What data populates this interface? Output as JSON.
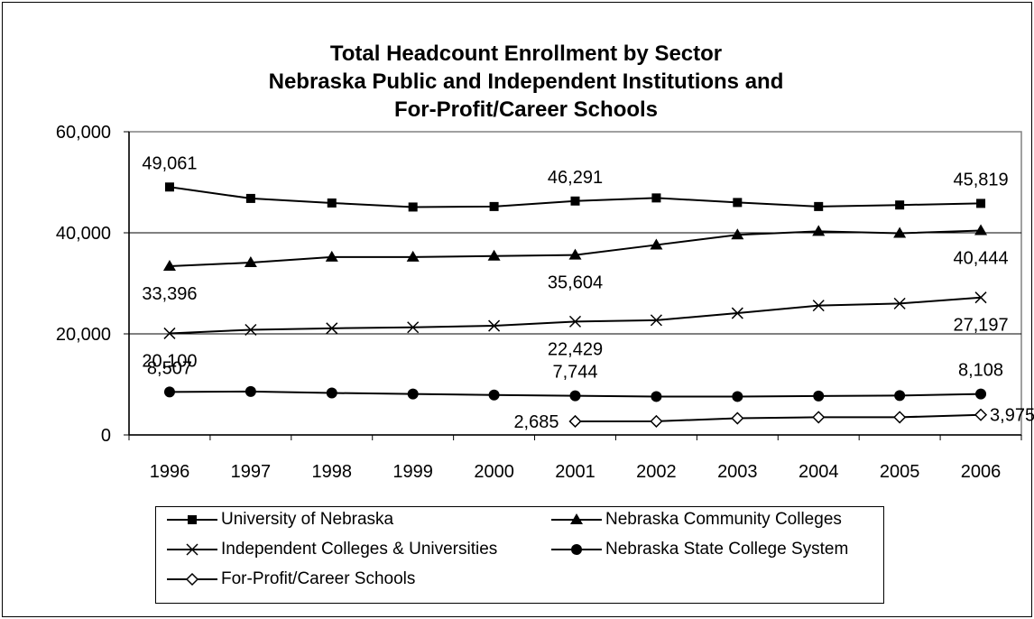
{
  "chart_data": {
    "type": "line",
    "title": [
      "Total Headcount Enrollment by Sector",
      "Nebraska Public and Independent Institutions and",
      "For-Profit/Career Schools"
    ],
    "xlabel": "",
    "ylabel": "",
    "x": [
      "1996",
      "1997",
      "1998",
      "1999",
      "2000",
      "2001",
      "2002",
      "2003",
      "2004",
      "2005",
      "2006"
    ],
    "ylim": [
      0,
      60000
    ],
    "yticks": [
      {
        "value": 0,
        "label": "0"
      },
      {
        "value": 20000,
        "label": "20,000"
      },
      {
        "value": 40000,
        "label": "40,000"
      },
      {
        "value": 60000,
        "label": "60,000"
      }
    ],
    "grid": "horizontal",
    "legend_position": "bottom",
    "series": [
      {
        "name": "University of Nebraska",
        "marker": "square",
        "values": [
          49061,
          46800,
          45900,
          45100,
          45200,
          46291,
          46900,
          46000,
          45200,
          45500,
          45819
        ],
        "labels": [
          {
            "index": 0,
            "text": "49,061",
            "pos": "above"
          },
          {
            "index": 5,
            "text": "46,291",
            "pos": "above"
          },
          {
            "index": 10,
            "text": "45,819",
            "pos": "above"
          }
        ]
      },
      {
        "name": "Nebraska Community Colleges",
        "marker": "triangle",
        "values": [
          33396,
          34100,
          35200,
          35200,
          35400,
          35604,
          37600,
          39600,
          40300,
          39900,
          40444
        ],
        "labels": [
          {
            "index": 0,
            "text": "33,396",
            "pos": "below"
          },
          {
            "index": 5,
            "text": "35,604",
            "pos": "below"
          },
          {
            "index": 10,
            "text": "40,444",
            "pos": "below"
          }
        ]
      },
      {
        "name": "Independent Colleges & Universities",
        "marker": "x",
        "values": [
          20100,
          20800,
          21100,
          21300,
          21600,
          22429,
          22700,
          24100,
          25600,
          26000,
          27197
        ],
        "labels": [
          {
            "index": 0,
            "text": "20,100",
            "pos": "below"
          },
          {
            "index": 5,
            "text": "22,429",
            "pos": "below"
          },
          {
            "index": 10,
            "text": "27,197",
            "pos": "below"
          }
        ]
      },
      {
        "name": "Nebraska State College System",
        "marker": "circle",
        "values": [
          8507,
          8600,
          8300,
          8100,
          7900,
          7744,
          7600,
          7600,
          7700,
          7800,
          8108
        ],
        "labels": [
          {
            "index": 0,
            "text": "8,507",
            "pos": "above"
          },
          {
            "index": 5,
            "text": "7,744",
            "pos": "above"
          },
          {
            "index": 10,
            "text": "8,108",
            "pos": "above"
          }
        ]
      },
      {
        "name": "For-Profit/Career Schools",
        "marker": "diamond",
        "values": [
          null,
          null,
          null,
          null,
          null,
          2685,
          2700,
          3300,
          3500,
          3500,
          3975
        ],
        "labels": [
          {
            "index": 5,
            "text": "2,685",
            "pos": "left"
          },
          {
            "index": 10,
            "text": "3,975",
            "pos": "right"
          }
        ]
      }
    ]
  }
}
